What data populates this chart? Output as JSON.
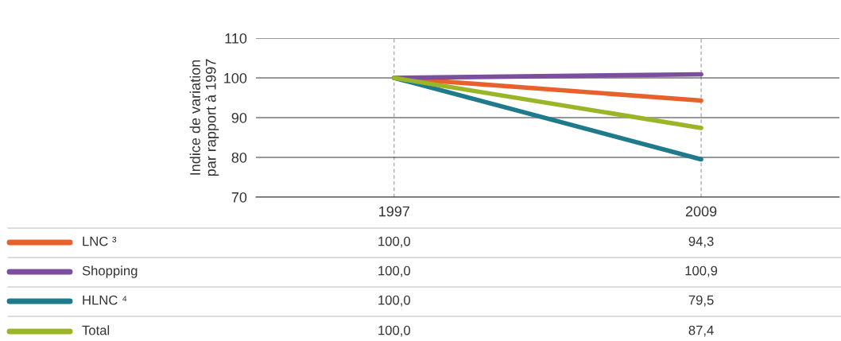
{
  "chart_data": {
    "type": "line",
    "ylabel": "Indice de variation\npar rapport à 1997",
    "categories": [
      "1997",
      "2009"
    ],
    "series": [
      {
        "name": "LNC ³",
        "color": "#e8602c",
        "values": [
          100.0,
          94.3
        ],
        "value_labels": [
          "100,0",
          "94,3"
        ]
      },
      {
        "name": "Shopping",
        "color": "#7b4f9e",
        "values": [
          100.0,
          100.9
        ],
        "value_labels": [
          "100,0",
          "100,9"
        ]
      },
      {
        "name": "HLNC ⁴",
        "color": "#1f7a8c",
        "values": [
          100.0,
          79.5
        ],
        "value_labels": [
          "100,0",
          "79,5"
        ]
      },
      {
        "name": "Total",
        "color": "#9bb529",
        "values": [
          100.0,
          87.4
        ],
        "value_labels": [
          "100,0",
          "87,4"
        ]
      }
    ],
    "ylim": [
      70,
      110
    ],
    "yticks": [
      70,
      80,
      90,
      100,
      110
    ],
    "grid": true,
    "legend": "bottom",
    "line_style": "solid",
    "marker": "none"
  }
}
